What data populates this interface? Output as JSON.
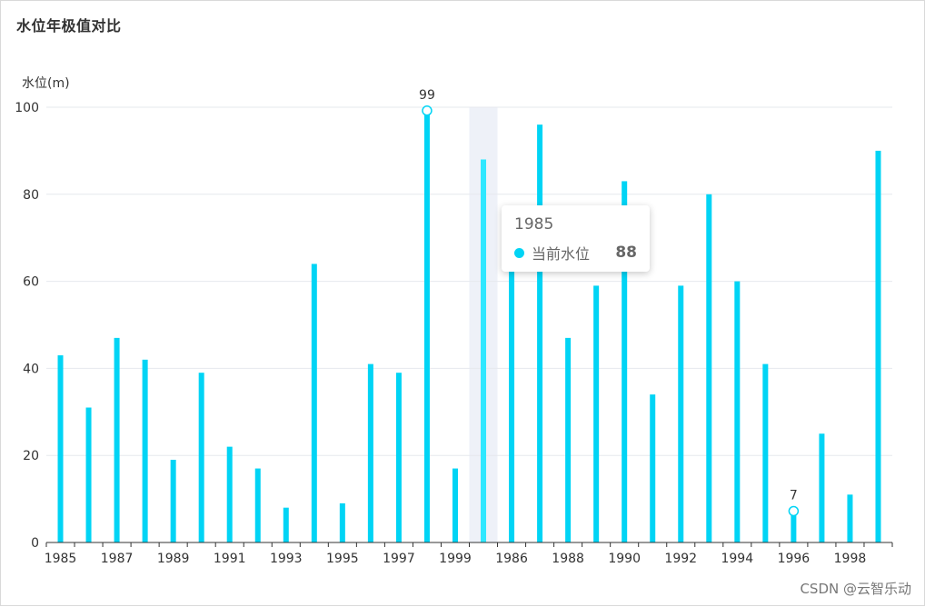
{
  "title": "水位年极值对比",
  "watermark": "CSDN @云智乐动",
  "colors": {
    "bar": "#00d4f5",
    "bar_highlight": "#2fe8ff",
    "axis_pointer_shadow": "#eef1f8",
    "grid": "#e6e8ee",
    "axis": "#333333",
    "text": "#333333",
    "tooltip_text": "#666666"
  },
  "tooltip": {
    "title": "1985",
    "series_name": "当前水位",
    "value": "88"
  },
  "chart_data": {
    "type": "bar",
    "title": "水位年极值对比",
    "ylabel": "水位(m)",
    "xlabel": "",
    "ylim": [
      0,
      100
    ],
    "yticks": [
      0,
      20,
      40,
      60,
      80,
      100
    ],
    "grid": true,
    "highlight_index": 15,
    "categories": [
      "1985",
      "1986",
      "1987",
      "1988",
      "1989",
      "1990",
      "1991",
      "1992",
      "1993",
      "1994",
      "1995",
      "1996",
      "1997",
      "1998",
      "1999",
      "1985",
      "1986",
      "1987",
      "1988",
      "1989",
      "1990",
      "1991",
      "1992",
      "1993",
      "1994",
      "1995",
      "1996",
      "1997",
      "1998",
      "1999"
    ],
    "xtick_labels": [
      "1985",
      "",
      "1987",
      "",
      "1989",
      "",
      "1991",
      "",
      "1993",
      "",
      "1995",
      "",
      "1997",
      "",
      "1999",
      "",
      "1986",
      "",
      "1988",
      "",
      "1990",
      "",
      "1992",
      "",
      "1994",
      "",
      "1996",
      "",
      "1998",
      ""
    ],
    "series": [
      {
        "name": "当前水位",
        "values": [
          43,
          31,
          47,
          42,
          19,
          39,
          22,
          17,
          8,
          64,
          9,
          41,
          39,
          99,
          17,
          88,
          67,
          96,
          47,
          59,
          83,
          34,
          59,
          80,
          60,
          41,
          7,
          25,
          11,
          90
        ]
      }
    ],
    "annotations": [
      {
        "index": 13,
        "label": "99"
      },
      {
        "index": 26,
        "label": "7"
      }
    ]
  }
}
